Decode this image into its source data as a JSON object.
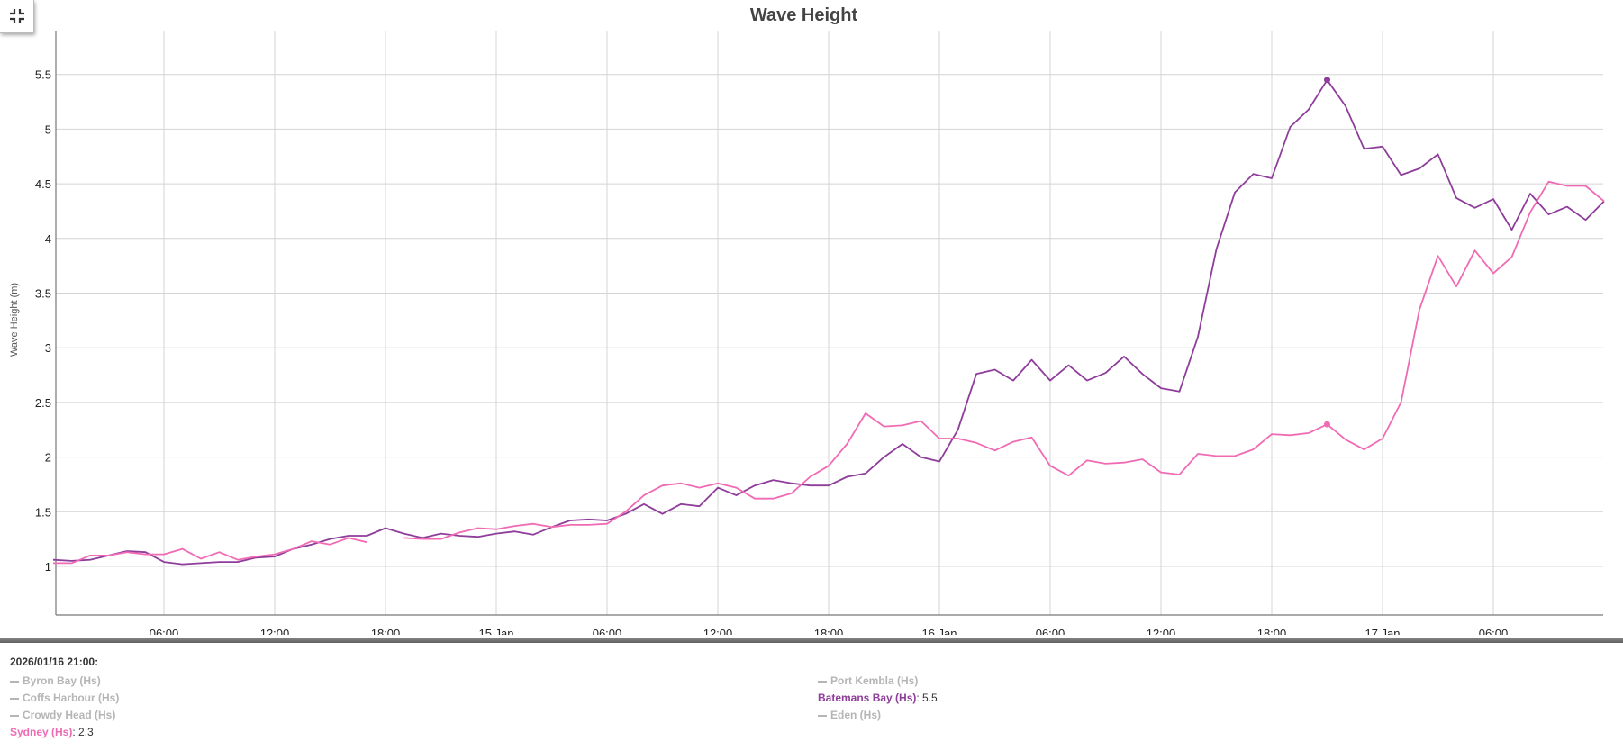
{
  "toolbar": {
    "collapse_icon": "collapse-icon"
  },
  "chart_data": {
    "type": "line",
    "title": "Wave Height",
    "xlabel": "",
    "ylabel": "Wave Height (m)",
    "ylim": [
      0.55,
      5.9
    ],
    "y_ticks": [
      1,
      1.5,
      2,
      2.5,
      3,
      3.5,
      4,
      4.5,
      5,
      5.5
    ],
    "x_tick_labels": [
      {
        "hour": 6,
        "label": "06:00"
      },
      {
        "hour": 12,
        "label": "12:00"
      },
      {
        "hour": 18,
        "label": "18:00"
      },
      {
        "hour": 24,
        "label": "15 Jan"
      },
      {
        "hour": 30,
        "label": "06:00"
      },
      {
        "hour": 36,
        "label": "12:00"
      },
      {
        "hour": 42,
        "label": "18:00"
      },
      {
        "hour": 48,
        "label": "16 Jan"
      },
      {
        "hour": 54,
        "label": "06:00"
      },
      {
        "hour": 60,
        "label": "12:00"
      },
      {
        "hour": 66,
        "label": "18:00"
      },
      {
        "hour": 72,
        "label": "17 Jan"
      },
      {
        "hour": 78,
        "label": "06:00"
      }
    ],
    "x_start": "2026/01/14 00:00",
    "x_step_hours": 1,
    "grid": true,
    "legend_position": "bottom",
    "series": [
      {
        "name": "Batemans Bay (Hs)",
        "color": "#8e3d9a",
        "highlight_index": 69,
        "values": [
          1.06,
          1.05,
          1.06,
          1.1,
          1.14,
          1.13,
          1.04,
          1.02,
          1.03,
          1.04,
          1.04,
          1.08,
          1.09,
          1.16,
          1.2,
          1.25,
          1.28,
          1.28,
          1.35,
          1.3,
          1.26,
          1.3,
          1.28,
          1.27,
          1.3,
          1.32,
          1.29,
          1.36,
          1.42,
          1.43,
          1.42,
          1.48,
          1.57,
          1.48,
          1.57,
          1.55,
          1.72,
          1.65,
          1.74,
          1.79,
          1.76,
          1.74,
          1.74,
          1.82,
          1.85,
          2.0,
          2.12,
          2.0,
          1.96,
          2.25,
          2.76,
          2.8,
          2.7,
          2.89,
          2.7,
          2.84,
          2.7,
          2.77,
          2.92,
          2.76,
          2.63,
          2.6,
          3.1,
          3.9,
          4.42,
          4.59,
          4.55,
          5.02,
          5.18,
          5.45,
          5.21,
          4.82,
          4.84,
          4.58,
          4.64,
          4.77,
          4.37,
          4.28,
          4.36,
          4.08,
          4.41,
          4.22,
          4.29,
          4.17,
          4.34
        ]
      },
      {
        "name": "Sydney (Hs)",
        "color": "#f06bb4",
        "highlight_index": 69,
        "values": [
          1.03,
          1.03,
          1.1,
          1.1,
          1.13,
          1.11,
          1.11,
          1.16,
          1.07,
          1.13,
          1.06,
          1.09,
          1.11,
          1.16,
          1.23,
          1.2,
          1.26,
          1.22,
          null,
          1.26,
          1.25,
          1.25,
          1.31,
          1.35,
          1.34,
          1.37,
          1.39,
          1.36,
          1.38,
          1.38,
          1.39,
          1.5,
          1.65,
          1.74,
          1.76,
          1.72,
          1.76,
          1.72,
          1.62,
          1.62,
          1.67,
          1.82,
          1.92,
          2.12,
          2.4,
          2.28,
          2.29,
          2.33,
          2.17,
          2.17,
          2.13,
          2.06,
          2.14,
          2.18,
          1.92,
          1.83,
          1.97,
          1.94,
          1.95,
          1.98,
          1.86,
          1.84,
          2.03,
          2.01,
          2.01,
          2.07,
          2.21,
          2.2,
          2.22,
          2.3,
          2.16,
          2.07,
          2.17,
          2.5,
          3.35,
          3.84,
          3.56,
          3.89,
          3.68,
          3.83,
          4.24,
          4.52,
          4.48,
          4.48,
          4.34
        ]
      }
    ]
  },
  "legend": {
    "timestamp": "2026/01/16 21:00:",
    "left_column": [
      {
        "label": "Byron Bay (Hs)",
        "active": false,
        "value": ""
      },
      {
        "label": "Coffs Harbour (Hs)",
        "active": false,
        "value": ""
      },
      {
        "label": "Crowdy Head (Hs)",
        "active": false,
        "value": ""
      },
      {
        "label": "Sydney (Hs)",
        "active": true,
        "value": ": 2.3",
        "color": "#f06bb4"
      }
    ],
    "right_column": [
      {
        "label": "Port Kembla (Hs)",
        "active": false,
        "value": ""
      },
      {
        "label": "Batemans Bay (Hs)",
        "active": true,
        "value": ": 5.5",
        "color": "#8e3d9a"
      },
      {
        "label": "Eden (Hs)",
        "active": false,
        "value": ""
      }
    ]
  }
}
